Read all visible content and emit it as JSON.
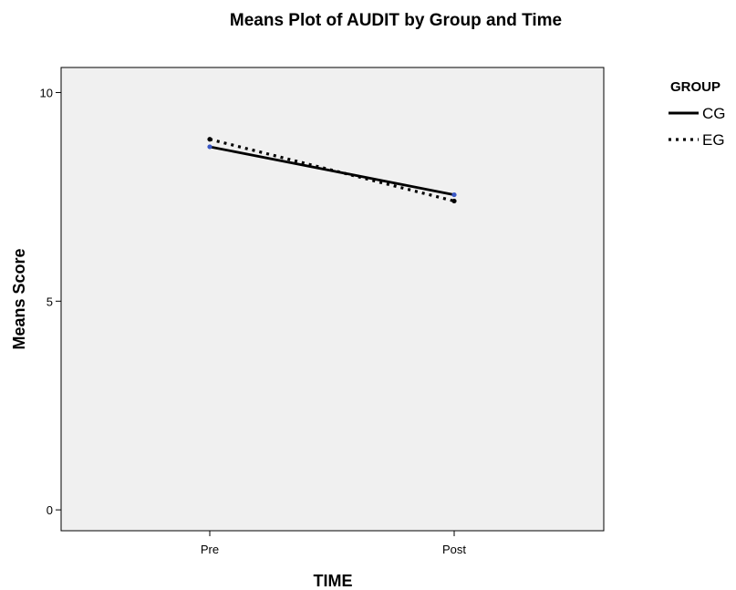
{
  "chart_data": {
    "type": "line",
    "title": "Means Plot of AUDIT by Group and Time",
    "xlabel": "TIME",
    "ylabel": "Means Score",
    "categories": [
      "Pre",
      "Post"
    ],
    "ylim": [
      -0.5,
      10.6
    ],
    "yticks": [
      0,
      5,
      10
    ],
    "grid": false,
    "legend": {
      "title": "GROUP",
      "placement": "right"
    },
    "series": [
      {
        "name": "CG",
        "values": [
          8.7,
          7.55
        ],
        "style": "solid",
        "color": "#000000",
        "marker_color": "#3a57c4"
      },
      {
        "name": "EG",
        "values": [
          8.88,
          7.4
        ],
        "style": "dotted",
        "color": "#000000",
        "marker_color": "#000000"
      }
    ],
    "plot_background": "#f0f0f0"
  }
}
